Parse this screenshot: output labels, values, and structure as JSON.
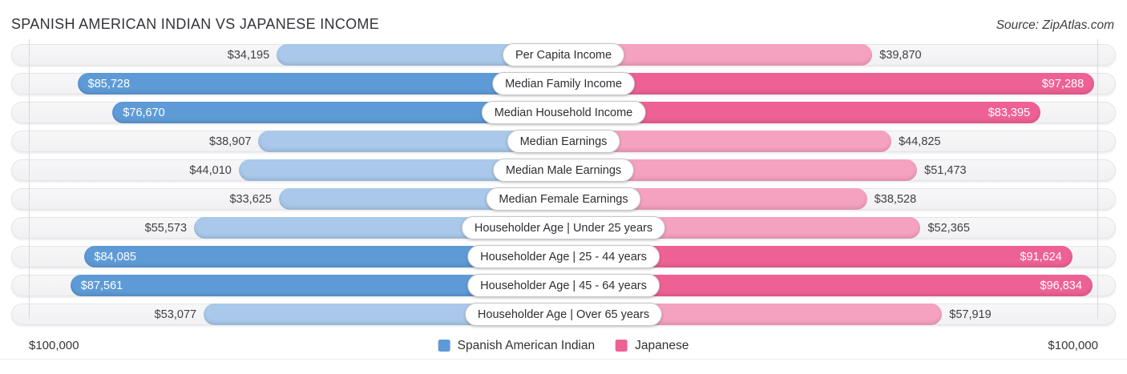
{
  "header": {
    "title": "SPANISH AMERICAN INDIAN VS JAPANESE INCOME",
    "source": "Source: ZipAtlas.com"
  },
  "axis": {
    "left_max_label": "$100,000",
    "right_max_label": "$100,000",
    "max_value": 100000
  },
  "colors": {
    "blue": "#5e9bd6",
    "blue_light": "#a9c8ea",
    "pink": "#ee6195",
    "pink_light": "#f5a1c0",
    "track": "#f1f1f3",
    "grid": "#d9d9dd"
  },
  "legend": [
    {
      "label": "Spanish American Indian",
      "color": "#5e9bd6"
    },
    {
      "label": "Japanese",
      "color": "#ee6195"
    }
  ],
  "rows": [
    {
      "label": "Per Capita Income",
      "highlight": false,
      "left": {
        "value": 34195,
        "display": "$34,195"
      },
      "right": {
        "value": 39870,
        "display": "$39,870"
      }
    },
    {
      "label": "Median Family Income",
      "highlight": true,
      "left": {
        "value": 85728,
        "display": "$85,728"
      },
      "right": {
        "value": 97288,
        "display": "$97,288"
      }
    },
    {
      "label": "Median Household Income",
      "highlight": true,
      "left": {
        "value": 76670,
        "display": "$76,670"
      },
      "right": {
        "value": 83395,
        "display": "$83,395"
      }
    },
    {
      "label": "Median Earnings",
      "highlight": false,
      "left": {
        "value": 38907,
        "display": "$38,907"
      },
      "right": {
        "value": 44825,
        "display": "$44,825"
      }
    },
    {
      "label": "Median Male Earnings",
      "highlight": false,
      "left": {
        "value": 44010,
        "display": "$44,010"
      },
      "right": {
        "value": 51473,
        "display": "$51,473"
      }
    },
    {
      "label": "Median Female Earnings",
      "highlight": false,
      "left": {
        "value": 33625,
        "display": "$33,625"
      },
      "right": {
        "value": 38528,
        "display": "$38,528"
      }
    },
    {
      "label": "Householder Age | Under 25 years",
      "highlight": false,
      "left": {
        "value": 55573,
        "display": "$55,573"
      },
      "right": {
        "value": 52365,
        "display": "$52,365"
      }
    },
    {
      "label": "Householder Age | 25 - 44 years",
      "highlight": true,
      "left": {
        "value": 84085,
        "display": "$84,085"
      },
      "right": {
        "value": 91624,
        "display": "$91,624"
      }
    },
    {
      "label": "Householder Age | 45 - 64 years",
      "highlight": true,
      "left": {
        "value": 87561,
        "display": "$87,561"
      },
      "right": {
        "value": 96834,
        "display": "$96,834"
      }
    },
    {
      "label": "Householder Age | Over 65 years",
      "highlight": false,
      "left": {
        "value": 53077,
        "display": "$53,077"
      },
      "right": {
        "value": 57919,
        "display": "$57,919"
      }
    }
  ],
  "chart_data": {
    "type": "bar",
    "orientation": "horizontal-diverging",
    "title": "SPANISH AMERICAN INDIAN VS JAPANESE INCOME",
    "categories": [
      "Per Capita Income",
      "Median Family Income",
      "Median Household Income",
      "Median Earnings",
      "Median Male Earnings",
      "Median Female Earnings",
      "Householder Age | Under 25 years",
      "Householder Age | 25 - 44 years",
      "Householder Age | 45 - 64 years",
      "Householder Age | Over 65 years"
    ],
    "series": [
      {
        "name": "Spanish American Indian",
        "color": "#5e9bd6",
        "values": [
          34195,
          85728,
          76670,
          38907,
          44010,
          33625,
          55573,
          84085,
          87561,
          53077
        ]
      },
      {
        "name": "Japanese",
        "color": "#ee6195",
        "values": [
          39870,
          97288,
          83395,
          44825,
          51473,
          38528,
          52365,
          91624,
          96834,
          57919
        ]
      }
    ],
    "xlim": [
      0,
      100000
    ],
    "value_prefix": "$",
    "grid": "edge-lines-only",
    "legend_position": "bottom-center"
  }
}
